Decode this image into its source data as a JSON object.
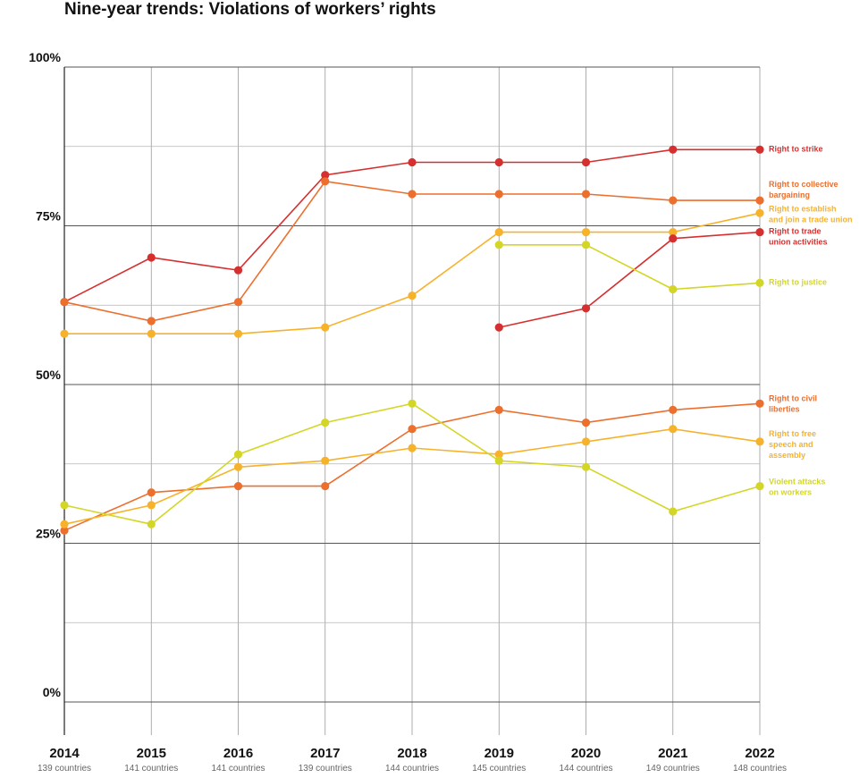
{
  "title": "Nine-year trends: Violations of workers’ rights",
  "colors": {
    "red": "#d62f2f",
    "orange": "#ec6f2d",
    "amber": "#f7b22c",
    "lime": "#d4d627",
    "grid": "#999999"
  },
  "chart_data": {
    "type": "line",
    "title": "Nine-year trends: Violations of workers’ rights",
    "x": [
      2014,
      2015,
      2016,
      2017,
      2018,
      2019,
      2020,
      2021,
      2022
    ],
    "x_tick_labels": [
      "2014",
      "2015",
      "2016",
      "2017",
      "2018",
      "2019",
      "2020",
      "2021",
      "2022"
    ],
    "x_sublabels": [
      "139 countries",
      "141 countries",
      "141 countries",
      "139 countries",
      "144 countries",
      "145 countries",
      "144 countries",
      "149 countries",
      "148 countries"
    ],
    "y_ticks": [
      0,
      25,
      50,
      75,
      100
    ],
    "y_tick_labels": [
      "0%",
      "25%",
      "50%",
      "75%",
      "100%"
    ],
    "ylim": [
      0,
      100
    ],
    "grid": true,
    "legend": "labels at right end of lines",
    "series": [
      {
        "name": "Right to strike",
        "color": "#d62f2f",
        "values": [
          63,
          70,
          68,
          83,
          85,
          85,
          85,
          87,
          87
        ]
      },
      {
        "name": "Right to collective bargaining",
        "color": "#ec6f2d",
        "values": [
          63,
          60,
          63,
          82,
          80,
          80,
          80,
          79,
          79
        ]
      },
      {
        "name": "Right to establish and join a trade union",
        "color": "#f7b22c",
        "values": [
          58,
          58,
          58,
          59,
          64,
          74,
          74,
          74,
          77
        ]
      },
      {
        "name": "Right to trade union activities",
        "color": "#d62f2f",
        "values": [
          null,
          null,
          null,
          null,
          null,
          59,
          62,
          73,
          74
        ]
      },
      {
        "name": "Right to justice",
        "color": "#d4d627",
        "values": [
          null,
          null,
          null,
          null,
          null,
          72,
          72,
          65,
          66
        ]
      },
      {
        "name": "Right to civil liberties",
        "color": "#ec6f2d",
        "values": [
          27,
          33,
          34,
          34,
          43,
          46,
          44,
          46,
          47
        ]
      },
      {
        "name": "Right to free speech and assembly",
        "color": "#f7b22c",
        "values": [
          28,
          31,
          37,
          38,
          40,
          39,
          41,
          43,
          41
        ]
      },
      {
        "name": "Violent attacks on workers",
        "color": "#d4d627",
        "values": [
          31,
          28,
          39,
          44,
          47,
          38,
          37,
          30,
          34
        ]
      }
    ],
    "series_label_lines": [
      [
        "Right to strike"
      ],
      [
        "Right to collective",
        "bargaining"
      ],
      [
        "Right to establish",
        "and join a trade union"
      ],
      [
        "Right to trade",
        "union activities"
      ],
      [
        "Right to justice"
      ],
      [
        "Right to civil",
        "liberties"
      ],
      [
        "Right to free",
        "speech and",
        "assembly"
      ],
      [
        "Violent attacks",
        "on workers"
      ]
    ]
  }
}
